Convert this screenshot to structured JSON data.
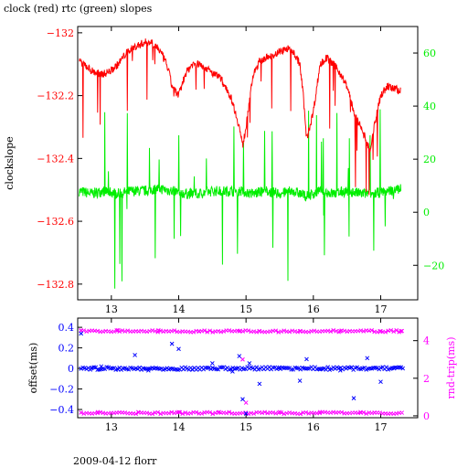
{
  "page": {
    "title": "clock (red) rtc (green) slopes",
    "footer": "2009-04-12 florr"
  },
  "colors": {
    "red": "#ff0000",
    "green": "#00ee00",
    "blue": "#0000ff",
    "magenta": "#ff00ff",
    "axis": "#000000"
  },
  "chart_data": [
    {
      "type": "line",
      "title": "clock (red) rtc (green) slopes",
      "xlabel": "",
      "ylabel": "clockslope",
      "ylabel_right": "",
      "xlim": [
        12.5,
        17.55
      ],
      "x_ticks": [
        13,
        14,
        15,
        16,
        17
      ],
      "ylim": [
        -132.85,
        -131.98
      ],
      "y_ticks": [
        -132,
        -132.2,
        -132.4,
        -132.6,
        -132.8
      ],
      "y_tick_labels": [
        "−132",
        "−132.2",
        "−132.4",
        "−132.6",
        "−132.8"
      ],
      "ylim_right": [
        -33,
        70
      ],
      "y_ticks_right": [
        60,
        40,
        20,
        0,
        -20
      ],
      "y_tick_labels_right": [
        "60",
        "40",
        "20",
        "0",
        "−20"
      ],
      "legend": "none",
      "series": [
        {
          "axis": "left",
          "color": "red",
          "x": [
            12.52,
            12.6,
            12.7,
            12.8,
            12.9,
            13.0,
            13.1,
            13.2,
            13.3,
            13.4,
            13.5,
            13.6,
            13.7,
            13.8,
            13.85,
            13.9,
            14.0,
            14.1,
            14.2,
            14.3,
            14.4,
            14.5,
            14.6,
            14.7,
            14.8,
            14.9,
            14.95,
            15.0,
            15.1,
            15.2,
            15.3,
            15.4,
            15.5,
            15.6,
            15.7,
            15.8,
            15.85,
            15.9,
            16.0,
            16.1,
            16.2,
            16.3,
            16.4,
            16.5,
            16.6,
            16.7,
            16.8,
            16.85,
            16.9,
            17.0,
            17.1,
            17.2,
            17.3
          ],
          "y": [
            -132.09,
            -132.1,
            -132.12,
            -132.13,
            -132.13,
            -132.12,
            -132.1,
            -132.07,
            -132.05,
            -132.04,
            -132.03,
            -132.03,
            -132.05,
            -132.09,
            -132.12,
            -132.17,
            -132.2,
            -132.13,
            -132.1,
            -132.1,
            -132.11,
            -132.13,
            -132.14,
            -132.17,
            -132.22,
            -132.3,
            -132.36,
            -132.3,
            -132.14,
            -132.09,
            -132.08,
            -132.07,
            -132.06,
            -132.05,
            -132.06,
            -132.1,
            -132.2,
            -132.34,
            -132.25,
            -132.1,
            -132.08,
            -132.1,
            -132.13,
            -132.17,
            -132.25,
            -132.3,
            -132.35,
            -132.38,
            -132.3,
            -132.2,
            -132.17,
            -132.18,
            -132.18
          ]
        },
        {
          "axis": "right",
          "color": "green",
          "x": [
            12.52,
            12.7,
            12.9,
            13.1,
            13.3,
            13.5,
            13.7,
            13.9,
            14.1,
            14.3,
            14.5,
            14.7,
            14.9,
            15.1,
            15.3,
            15.5,
            15.7,
            15.9,
            16.1,
            16.3,
            16.5,
            16.7,
            16.9,
            17.1,
            17.3
          ],
          "y": [
            8,
            7,
            8,
            7,
            8,
            8,
            9,
            8,
            7,
            7,
            8,
            8,
            8,
            7,
            8,
            7,
            8,
            6,
            8,
            7,
            8,
            7,
            7,
            8,
            9
          ]
        }
      ]
    },
    {
      "type": "scatter",
      "xlabel": "",
      "ylabel": "offset(ms)",
      "ylabel_right": "rnd-trip(ms)",
      "xlim": [
        12.5,
        17.55
      ],
      "x_ticks": [
        13,
        14,
        15,
        16,
        17
      ],
      "ylim": [
        -0.48,
        0.49
      ],
      "y_ticks": [
        0.4,
        0.2,
        0,
        -0.2,
        -0.4
      ],
      "y_tick_labels": [
        "0.4",
        "0.2",
        "0",
        "−0.2",
        "−0.4"
      ],
      "ylim_right": [
        -0.1,
        5.2
      ],
      "y_ticks_right": [
        4,
        2,
        0
      ],
      "y_tick_labels_right": [
        "4",
        "2",
        "0"
      ],
      "legend": "none",
      "series": [
        {
          "axis": "left",
          "color": "blue",
          "x": [
            12.55,
            12.7,
            12.85,
            13.1,
            13.35,
            13.55,
            13.9,
            14.0,
            14.2,
            14.5,
            14.8,
            14.9,
            14.95,
            15.0,
            15.05,
            15.2,
            15.5,
            15.8,
            15.9,
            16.1,
            16.4,
            16.6,
            16.8,
            17.0,
            17.2,
            17.3
          ],
          "y": [
            0.34,
            0.0,
            0.02,
            -0.01,
            0.13,
            -0.02,
            0.24,
            0.19,
            -0.01,
            0.05,
            -0.03,
            0.12,
            -0.3,
            -0.44,
            0.05,
            -0.15,
            0.01,
            -0.12,
            0.09,
            -0.01,
            -0.02,
            -0.29,
            0.1,
            -0.13,
            0.0,
            0.01
          ]
        },
        {
          "axis": "right",
          "color": "magenta",
          "x": [
            12.55,
            12.8,
            13.1,
            13.4,
            13.7,
            14.0,
            14.3,
            14.6,
            14.9,
            14.95,
            15.0,
            15.2,
            15.5,
            15.8,
            16.1,
            16.4,
            16.7,
            17.0,
            17.3
          ],
          "y": [
            4.55,
            0.2,
            4.55,
            0.2,
            4.55,
            0.2,
            4.5,
            0.2,
            4.5,
            3.0,
            0.7,
            4.5,
            0.2,
            4.5,
            0.2,
            4.5,
            0.2,
            4.5,
            4.5
          ]
        }
      ]
    }
  ]
}
